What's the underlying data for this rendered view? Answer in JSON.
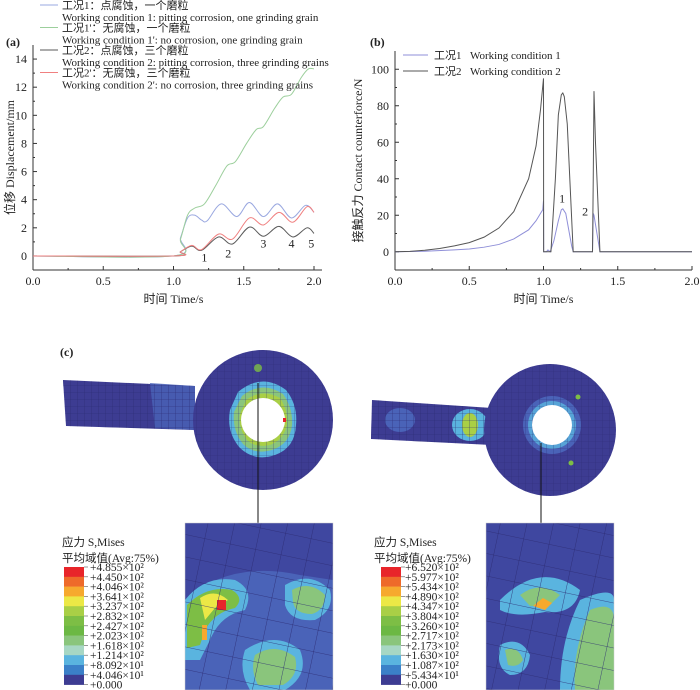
{
  "panels": {
    "a": "(a)",
    "b": "(b)",
    "c": "(c)"
  },
  "chart_data": [
    {
      "type": "line",
      "panel": "(a)",
      "xlabel": "时间 Time/s",
      "ylabel": "位移 Displacement/mm",
      "xlim": [
        0,
        2.0
      ],
      "ylim": [
        -1,
        15
      ],
      "xticks": [
        "0.0",
        "0.5",
        "1.0",
        "1.5",
        "2.0"
      ],
      "yticks": [
        "0",
        "2",
        "4",
        "6",
        "8",
        "10",
        "12",
        "14"
      ],
      "grid": false,
      "legend_position": "top-left",
      "series": [
        {
          "name": "工况1：点腐蚀，一个磨粒",
          "name_en": "Working condition 1: pitting corrosion, one grinding grain",
          "color": "#9aa8e0",
          "points": [
            [
              0,
              0
            ],
            [
              1.0,
              0
            ],
            [
              1.05,
              1.3
            ],
            [
              1.1,
              2.7
            ],
            [
              1.15,
              2.9
            ],
            [
              1.2,
              2.55
            ],
            [
              1.24,
              2.5
            ],
            [
              1.34,
              3.7
            ],
            [
              1.45,
              2.8
            ],
            [
              1.54,
              3.8
            ],
            [
              1.64,
              2.8
            ],
            [
              1.74,
              3.7
            ],
            [
              1.84,
              2.7
            ],
            [
              1.94,
              3.6
            ],
            [
              2.0,
              3.1
            ]
          ]
        },
        {
          "name": "工况1'：无腐蚀，一个磨粒",
          "name_en": "Working condition 1': no corrosion, one grinding grain",
          "color": "#9ccf9c",
          "points": [
            [
              0,
              0
            ],
            [
              1.0,
              0
            ],
            [
              1.05,
              1.2
            ],
            [
              1.1,
              2.9
            ],
            [
              1.15,
              3.4
            ],
            [
              1.22,
              3.7
            ],
            [
              1.3,
              5.0
            ],
            [
              1.38,
              6.4
            ],
            [
              1.44,
              6.7
            ],
            [
              1.52,
              8.0
            ],
            [
              1.59,
              9.0
            ],
            [
              1.64,
              9.2
            ],
            [
              1.72,
              10.5
            ],
            [
              1.78,
              11.3
            ],
            [
              1.84,
              11.5
            ],
            [
              1.91,
              12.7
            ],
            [
              1.96,
              13.3
            ],
            [
              2.0,
              13.3
            ]
          ]
        },
        {
          "name": "工况2：点腐蚀，三个磨粒",
          "name_en": "Working condition 2: pitting corrosion, three grinding grains",
          "color": "#5a5a5a",
          "points": [
            [
              0,
              0
            ],
            [
              1.0,
              0
            ],
            [
              1.05,
              0.3
            ],
            [
              1.13,
              0.7
            ],
            [
              1.2,
              0.4
            ],
            [
              1.32,
              1.35
            ],
            [
              1.42,
              0.85
            ],
            [
              1.54,
              2.05
            ],
            [
              1.64,
              1.4
            ],
            [
              1.75,
              2.1
            ],
            [
              1.85,
              1.35
            ],
            [
              1.95,
              2.0
            ],
            [
              2.0,
              1.6
            ]
          ]
        },
        {
          "name": "工况2'：无腐蚀，三个磨粒",
          "name_en": "Working condition 2': no corrosion, three grinding grains",
          "color": "#f08080",
          "points": [
            [
              0,
              0
            ],
            [
              1.0,
              0
            ],
            [
              1.05,
              0.3
            ],
            [
              1.13,
              0.75
            ],
            [
              1.2,
              0.45
            ],
            [
              1.32,
              1.55
            ],
            [
              1.42,
              1.2
            ],
            [
              1.54,
              2.7
            ],
            [
              1.64,
              2.2
            ],
            [
              1.75,
              3.1
            ],
            [
              1.85,
              2.4
            ],
            [
              1.95,
              3.5
            ],
            [
              2.0,
              3.1
            ]
          ]
        }
      ],
      "annotations": [
        {
          "text": "1",
          "x": 1.22,
          "y": -0.4
        },
        {
          "text": "2",
          "x": 1.39,
          "y": -0.1
        },
        {
          "text": "3",
          "x": 1.64,
          "y": 0.6
        },
        {
          "text": "4",
          "x": 1.84,
          "y": 0.6
        },
        {
          "text": "5",
          "x": 1.98,
          "y": 0.6
        }
      ]
    },
    {
      "type": "line",
      "panel": "(b)",
      "xlabel": "时间 Time/s",
      "ylabel": "接触反力 Contact counterforce/N",
      "xlim": [
        0,
        2.0
      ],
      "ylim": [
        -10,
        110
      ],
      "xticks": [
        "0.0",
        "0.5",
        "1.0",
        "1.5",
        "2.0"
      ],
      "yticks": [
        "0",
        "20",
        "40",
        "60",
        "80",
        "100"
      ],
      "grid": false,
      "legend_position": "top-left",
      "series": [
        {
          "name": "工况1",
          "name_en": "Working condition 1",
          "color": "#8f8fd8",
          "points": [
            [
              0,
              0
            ],
            [
              0.2,
              0.3
            ],
            [
              0.4,
              1
            ],
            [
              0.5,
              1.5
            ],
            [
              0.6,
              2.5
            ],
            [
              0.7,
              4
            ],
            [
              0.8,
              7
            ],
            [
              0.9,
              12
            ],
            [
              0.95,
              17
            ],
            [
              0.98,
              21
            ],
            [
              0.995,
              23
            ],
            [
              1.0,
              28
            ],
            [
              1.001,
              0
            ],
            [
              1.02,
              0
            ],
            [
              1.03,
              1
            ],
            [
              1.045,
              0
            ],
            [
              1.07,
              6
            ],
            [
              1.1,
              17
            ],
            [
              1.12,
              23
            ],
            [
              1.13,
              23.5
            ],
            [
              1.15,
              21
            ],
            [
              1.17,
              12
            ],
            [
              1.19,
              3
            ],
            [
              1.2,
              0
            ],
            [
              1.33,
              0
            ],
            [
              1.335,
              21
            ],
            [
              1.34,
              20
            ],
            [
              1.36,
              10
            ],
            [
              1.38,
              0
            ],
            [
              2.0,
              0
            ]
          ]
        },
        {
          "name": "工况2",
          "name_en": "Working condition 2",
          "color": "#555555",
          "points": [
            [
              0,
              0
            ],
            [
              0.1,
              0.2
            ],
            [
              0.2,
              0.8
            ],
            [
              0.3,
              1.8
            ],
            [
              0.4,
              3.2
            ],
            [
              0.5,
              5
            ],
            [
              0.6,
              8
            ],
            [
              0.7,
              13
            ],
            [
              0.8,
              22
            ],
            [
              0.9,
              40
            ],
            [
              0.95,
              58
            ],
            [
              0.98,
              78
            ],
            [
              1.0,
              95
            ],
            [
              1.001,
              0
            ],
            [
              1.05,
              0
            ],
            [
              1.08,
              40
            ],
            [
              1.1,
              75
            ],
            [
              1.12,
              86
            ],
            [
              1.13,
              87
            ],
            [
              1.14,
              85
            ],
            [
              1.16,
              70
            ],
            [
              1.18,
              35
            ],
            [
              1.2,
              0
            ],
            [
              1.33,
              0
            ],
            [
              1.335,
              40
            ],
            [
              1.34,
              88
            ],
            [
              1.35,
              60
            ],
            [
              1.37,
              20
            ],
            [
              1.38,
              0
            ],
            [
              2.0,
              0
            ]
          ]
        }
      ],
      "annotations": [
        {
          "text": "1",
          "x": 1.125,
          "y": 27
        },
        {
          "text": "2",
          "x": 1.28,
          "y": 20
        }
      ]
    }
  ],
  "contours": [
    {
      "title": "应力 S,Mises",
      "subtitle": "平均域值(Avg:75%)",
      "labels": [
        "+4.855×10²",
        "+4.450×10²",
        "+4.046×10²",
        "+3.641×10²",
        "+3.237×10²",
        "+2.832×10²",
        "+2.427×10²",
        "+2.023×10²",
        "+1.618×10²",
        "+1.214×10²",
        "+8.092×10¹",
        "+4.046×10¹",
        "+0.000"
      ]
    },
    {
      "title": "应力 S,Mises",
      "subtitle": "平均域值(Avg:75%)",
      "labels": [
        "+6.520×10²",
        "+5.977×10²",
        "+5.434×10²",
        "+4.890×10²",
        "+4.347×10²",
        "+3.804×10²",
        "+3.260×10²",
        "+2.717×10²",
        "+2.173×10²",
        "+1.630×10²",
        "+1.087×10²",
        "+5.434×10¹",
        "+0.000"
      ]
    }
  ],
  "colorbar_colors": [
    "#e8252a",
    "#ee6a2a",
    "#f6a92e",
    "#ece846",
    "#a9cf46",
    "#7dbe45",
    "#6cb844",
    "#8ac57c",
    "#a7d7c4",
    "#5ab4df",
    "#3b80c8",
    "#3d3c92"
  ]
}
